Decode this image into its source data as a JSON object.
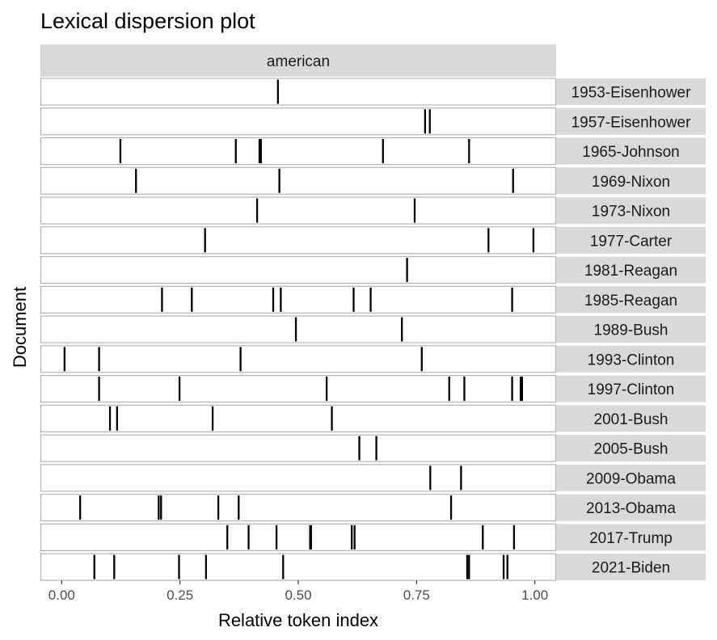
{
  "colors": {
    "strip": "#d9d9d9",
    "panel_border": "#b3b3b3",
    "mark": "#000000",
    "tick": "#333333"
  },
  "chart_data": {
    "type": "lexical-dispersion",
    "title": "Lexical dispersion plot",
    "facet": "american",
    "xlabel": "Relative token index",
    "ylabel": "Document",
    "xlim": [
      -0.045,
      1.045
    ],
    "xticks": [
      0,
      0.25,
      0.5,
      0.75,
      1
    ],
    "xtick_labels": [
      "0.00",
      "0.25",
      "0.50",
      "0.75",
      "1.00"
    ],
    "grid": false,
    "documents": [
      {
        "name": "1953-Eisenhower",
        "positions": [
          0.457
        ]
      },
      {
        "name": "1957-Eisenhower",
        "positions": [
          0.768,
          0.778
        ]
      },
      {
        "name": "1965-Johnson",
        "positions": [
          0.124,
          0.368,
          0.418,
          0.421,
          0.679,
          0.861
        ]
      },
      {
        "name": "1969-Nixon",
        "positions": [
          0.157,
          0.46,
          0.954
        ]
      },
      {
        "name": "1973-Nixon",
        "positions": [
          0.413,
          0.746
        ]
      },
      {
        "name": "1977-Carter",
        "positions": [
          0.303,
          0.902,
          0.997
        ]
      },
      {
        "name": "1981-Reagan",
        "positions": [
          0.73
        ]
      },
      {
        "name": "1985-Reagan",
        "positions": [
          0.212,
          0.275,
          0.447,
          0.463,
          0.617,
          0.653,
          0.952
        ]
      },
      {
        "name": "1989-Bush",
        "positions": [
          0.495,
          0.719
        ]
      },
      {
        "name": "1993-Clinton",
        "positions": [
          0.006,
          0.079,
          0.378,
          0.761
        ]
      },
      {
        "name": "1997-Clinton",
        "positions": [
          0.079,
          0.249,
          0.56,
          0.819,
          0.851,
          0.952,
          0.97,
          0.973
        ]
      },
      {
        "name": "2001-Bush",
        "positions": [
          0.102,
          0.117,
          0.319,
          0.571
        ]
      },
      {
        "name": "2005-Bush",
        "positions": [
          0.629,
          0.665
        ]
      },
      {
        "name": "2009-Obama",
        "positions": [
          0.779,
          0.844
        ]
      },
      {
        "name": "2013-Obama",
        "positions": [
          0.039,
          0.205,
          0.21,
          0.331,
          0.374,
          0.823
        ]
      },
      {
        "name": "2017-Trump",
        "positions": [
          0.35,
          0.395,
          0.454,
          0.525,
          0.527,
          0.613,
          0.619,
          0.89,
          0.956
        ]
      },
      {
        "name": "2021-Biden",
        "positions": [
          0.069,
          0.111,
          0.248,
          0.305,
          0.468,
          0.857,
          0.861,
          0.934,
          0.942
        ]
      }
    ]
  }
}
